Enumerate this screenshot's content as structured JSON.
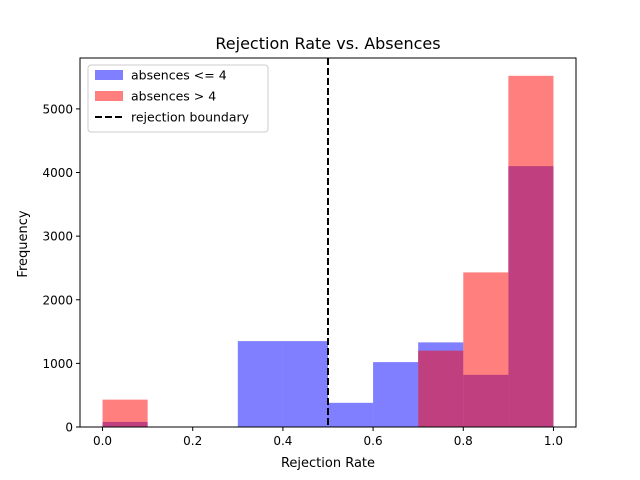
{
  "chart_data": {
    "type": "bar",
    "title": "Rejection Rate vs. Absences",
    "xlabel": "Rejection Rate",
    "ylabel": "Frequency",
    "xlim": [
      -0.05,
      1.05
    ],
    "ylim": [
      0,
      5800
    ],
    "x_ticks": [
      0.0,
      0.2,
      0.4,
      0.6,
      0.8,
      1.0
    ],
    "x_tick_labels": [
      "0.0",
      "0.2",
      "0.4",
      "0.6",
      "0.8",
      "1.0"
    ],
    "y_ticks": [
      0,
      1000,
      2000,
      3000,
      4000,
      5000
    ],
    "y_tick_labels": [
      "0",
      "1000",
      "2000",
      "3000",
      "4000",
      "5000"
    ],
    "bin_edges": [
      0.0,
      0.1,
      0.2,
      0.3,
      0.4,
      0.5,
      0.6,
      0.7,
      0.8,
      0.9,
      1.0
    ],
    "series": [
      {
        "name": "absences <= 4",
        "color": "#0000ff",
        "alpha": 0.5,
        "values": [
          80,
          0,
          0,
          1350,
          1350,
          380,
          1020,
          1330,
          820,
          4100
        ]
      },
      {
        "name": "absences > 4",
        "color": "#ff0000",
        "alpha": 0.5,
        "values": [
          430,
          0,
          0,
          0,
          0,
          0,
          0,
          1200,
          2430,
          5520
        ]
      }
    ],
    "reference_line": {
      "name": "rejection boundary",
      "x": 0.5,
      "color": "#000000",
      "style": "dashed"
    },
    "legend_position": "top-left",
    "grid": false
  }
}
